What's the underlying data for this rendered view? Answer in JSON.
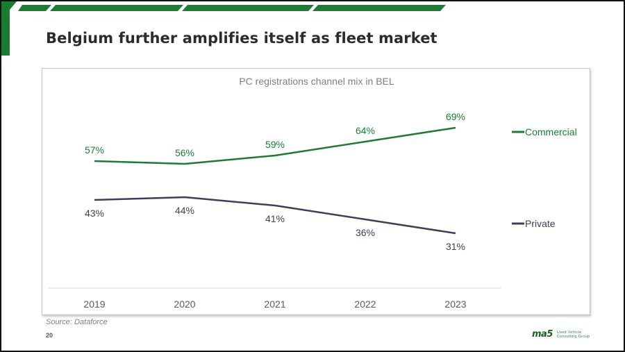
{
  "slide": {
    "title": "Belgium further amplifies itself as fleet market",
    "source": "Source: Dataforce",
    "page_number": "20",
    "logo": {
      "mark": "ma5",
      "line1": "Used Vehicle",
      "line2": "Consulting Group"
    },
    "colors": {
      "accent": "#1a7d32",
      "dark_green": "#1b5e20",
      "text": "#2b2b2b"
    }
  },
  "chart_data": {
    "type": "line",
    "title": "PC registrations channel mix in BEL",
    "categories": [
      "2019",
      "2020",
      "2021",
      "2022",
      "2023"
    ],
    "series": [
      {
        "name": "Commercial",
        "values": [
          57,
          56,
          59,
          64,
          69
        ],
        "labels": [
          "57%",
          "56%",
          "59%",
          "64%",
          "69%"
        ],
        "color": "#1a7d32"
      },
      {
        "name": "Private",
        "values": [
          43,
          44,
          41,
          36,
          31
        ],
        "labels": [
          "43%",
          "44%",
          "41%",
          "36%",
          "31%"
        ],
        "color": "#3a3f5c"
      }
    ],
    "unit": "%",
    "grid": false,
    "legend": "right"
  }
}
